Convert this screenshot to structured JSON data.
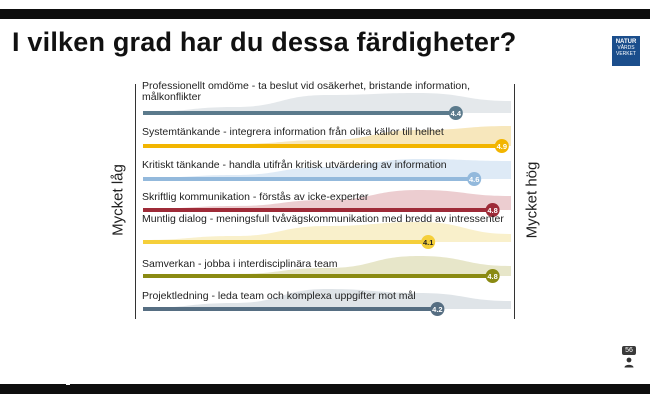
{
  "title": "I vilken grad har du dessa färdigheter?",
  "logo": {
    "line1": "NATUR",
    "line2": "VÅRDS",
    "line3": "VERKET"
  },
  "participants": {
    "count": "56",
    "icon": "person-icon"
  },
  "chart_data": {
    "type": "bar",
    "title": "I vilken grad har du dessa färdigheter?",
    "xlabel_left": "Mycket låg",
    "xlabel_right": "Mycket hög",
    "xlim": [
      1,
      5
    ],
    "categories": [
      "Professionellt omdöme - ta beslut vid osäkerhet, bristande information, målkonflikter",
      "Systemtänkande - integrera information från olika källor till helhet",
      "Kritiskt tänkande - handla utifrån kritisk utvärdering av information",
      "Skriftlig kommunikation - förstås av icke-experter",
      "Muntlig dialog - meningsfull tvåvägskommunikation med bredd av intressenter",
      "Samverkan - jobba i interdisciplinära team",
      "Projektledning - leda team och komplexa uppgifter mot mål"
    ],
    "values": [
      4.4,
      4.9,
      4.6,
      4.8,
      4.1,
      4.8,
      4.2
    ],
    "value_labels": [
      "4.4",
      "4.9",
      "4.6",
      "4.8",
      "4.1",
      "4.8",
      "4.2"
    ],
    "colors": [
      "#5b7a8c",
      "#f2b500",
      "#93b9dc",
      "#9e2b38",
      "#f5cf3a",
      "#8a8a12",
      "#566e82"
    ],
    "fill_colors": [
      "#dfe4e8",
      "#f6e3b0",
      "#d8e6f4",
      "#e9c4c8",
      "#f8edc2",
      "#e3e2bf",
      "#d9dfe4"
    ],
    "label_text_colors": [
      "#ffffff",
      "#ffffff",
      "#ffffff",
      "#ffffff",
      "#222222",
      "#ffffff",
      "#ffffff"
    ],
    "distributions": [
      [
        0.05,
        0.3,
        0.9,
        1.0,
        0.6
      ],
      [
        0.05,
        0.1,
        0.3,
        0.8,
        1.0
      ],
      [
        0.05,
        0.2,
        0.6,
        1.0,
        0.9
      ],
      [
        0.05,
        0.2,
        0.5,
        1.0,
        0.7
      ],
      [
        0.1,
        0.3,
        0.8,
        1.0,
        0.4
      ],
      [
        0.05,
        0.1,
        0.4,
        1.0,
        0.5
      ],
      [
        0.05,
        0.3,
        1.0,
        0.8,
        0.4
      ]
    ]
  }
}
